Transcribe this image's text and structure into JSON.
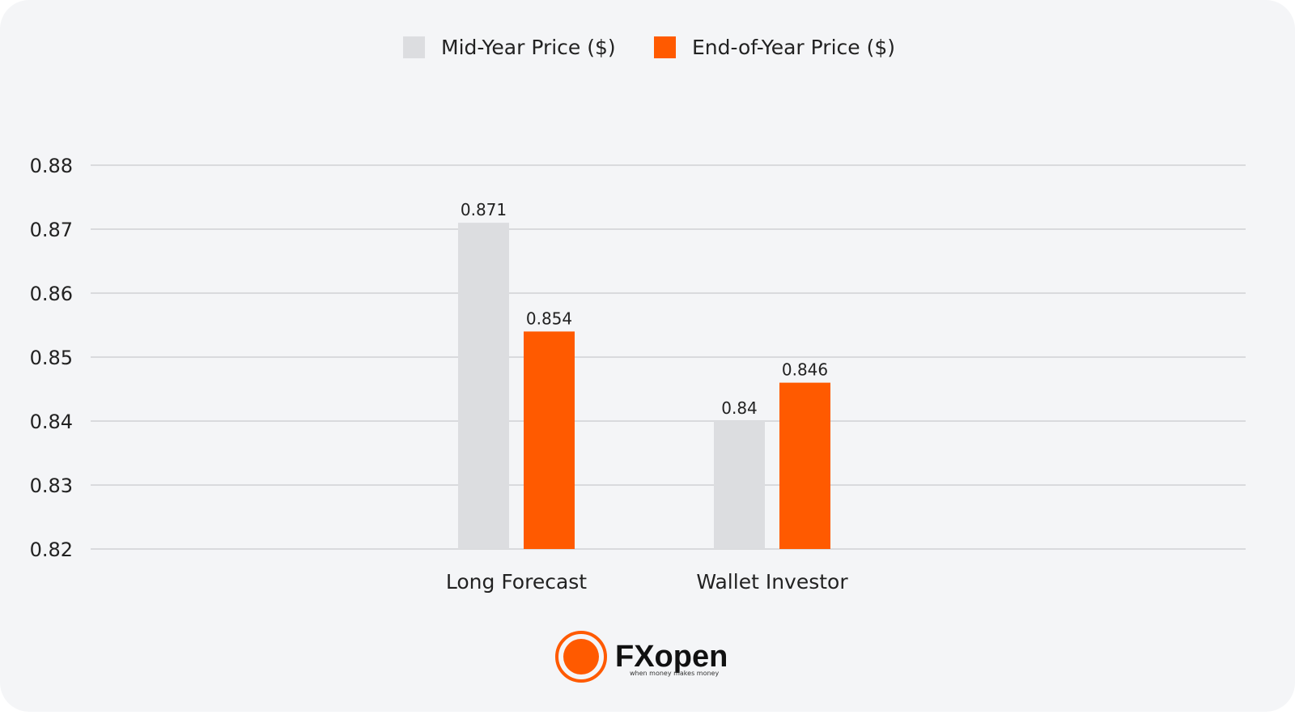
{
  "chart_data": {
    "type": "bar",
    "categories": [
      "Long Forecast",
      "Wallet Investor"
    ],
    "series": [
      {
        "name": "Mid-Year Price ($)",
        "color": "#dcdde0",
        "values": [
          0.871,
          0.84
        ]
      },
      {
        "name": "End-of-Year Price ($)",
        "color": "#ff5a00",
        "values": [
          0.854,
          0.846
        ]
      }
    ],
    "ylim": [
      0.82,
      0.88
    ],
    "yticks": [
      0.82,
      0.83,
      0.84,
      0.85,
      0.86,
      0.87,
      0.88
    ],
    "grid": true,
    "legend": "top",
    "logo": {
      "name": "FXopen",
      "tagline": "when money makes money"
    }
  }
}
